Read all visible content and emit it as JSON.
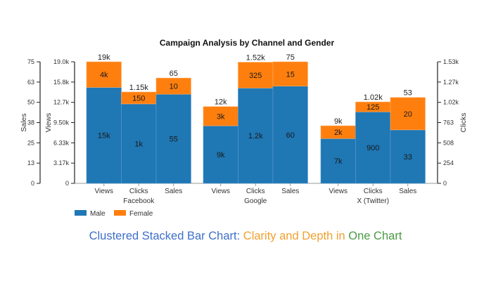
{
  "chart_data": {
    "type": "bar",
    "subtype": "clustered-stacked",
    "title": "Campaign Analysis by Channel and Gender",
    "groups": [
      "Facebook",
      "Google",
      "X (Twitter)"
    ],
    "metrics": [
      "Views",
      "Clicks",
      "Sales"
    ],
    "series": [
      {
        "name": "Male",
        "color": "#1f77b4"
      },
      {
        "name": "Female",
        "color": "#ff7f0e"
      }
    ],
    "data": [
      {
        "group": "Facebook",
        "bars": [
          {
            "metric": "Views",
            "male": 15000,
            "female": 4000,
            "male_label": "15k",
            "female_label": "4k",
            "total_label": "19k"
          },
          {
            "metric": "Clicks",
            "male": 1000,
            "female": 150,
            "male_label": "1k",
            "female_label": "150",
            "total_label": "1.15k"
          },
          {
            "metric": "Sales",
            "male": 55,
            "female": 10,
            "male_label": "55",
            "female_label": "10",
            "total_label": "65"
          }
        ]
      },
      {
        "group": "Google",
        "bars": [
          {
            "metric": "Views",
            "male": 9000,
            "female": 3000,
            "male_label": "9k",
            "female_label": "3k",
            "total_label": "12k"
          },
          {
            "metric": "Clicks",
            "male": 1200,
            "female": 325,
            "male_label": "1.2k",
            "female_label": "325",
            "total_label": "1.52k"
          },
          {
            "metric": "Sales",
            "male": 60,
            "female": 15,
            "male_label": "60",
            "female_label": "15",
            "total_label": "75"
          }
        ]
      },
      {
        "group": "X (Twitter)",
        "bars": [
          {
            "metric": "Views",
            "male": 7000,
            "female": 2000,
            "male_label": "7k",
            "female_label": "2k",
            "total_label": "9k"
          },
          {
            "metric": "Clicks",
            "male": 900,
            "female": 125,
            "male_label": "900",
            "female_label": "125",
            "total_label": "1.02k"
          },
          {
            "metric": "Sales",
            "male": 33,
            "female": 20,
            "male_label": "33",
            "female_label": "20",
            "total_label": "53"
          }
        ]
      }
    ],
    "axes": {
      "sales": {
        "label": "Sales",
        "range": [
          0,
          75
        ],
        "ticks": [
          "0",
          "13",
          "25",
          "38",
          "50",
          "63",
          "75"
        ],
        "side": "left-outer"
      },
      "views": {
        "label": "Views",
        "range": [
          0,
          19000
        ],
        "ticks": [
          "0",
          "3.17k",
          "6.33k",
          "9.50k",
          "12.7k",
          "15.8k",
          "19.0k"
        ],
        "side": "left-inner"
      },
      "clicks": {
        "label": "Clicks",
        "range": [
          0,
          1530
        ],
        "ticks": [
          "0",
          "254",
          "508",
          "763",
          "1.02k",
          "1.27k",
          "1.53k"
        ],
        "side": "right"
      }
    },
    "legend": {
      "position": "bottom-left",
      "entries": [
        "Male",
        "Female"
      ]
    },
    "grid": false
  },
  "caption": {
    "part1": "Clustered Stacked Bar Chart: ",
    "part2": "Clarity and Depth in ",
    "part3": "One Chart",
    "colors": [
      "#3f6fc9",
      "#f0a030",
      "#4a9a44"
    ]
  }
}
